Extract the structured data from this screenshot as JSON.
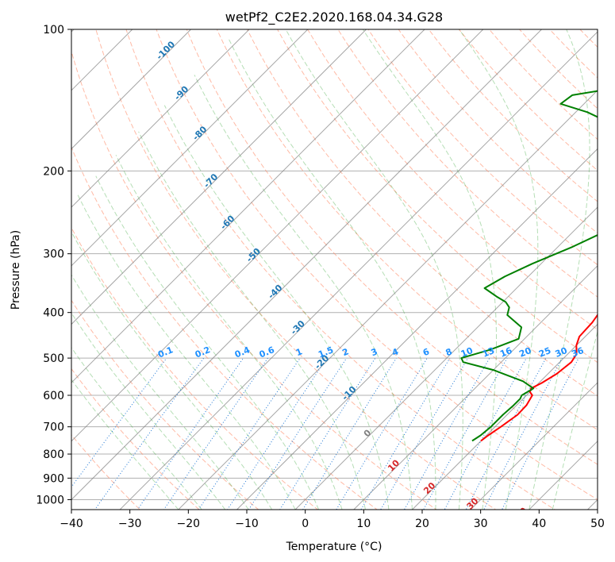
{
  "chart_data": {
    "type": "line",
    "title": "wetPf2_C2E2.2020.168.04.34.G28",
    "xlabel": "Temperature (°C)",
    "ylabel": "Pressure (hPa)",
    "xlim": [
      -40,
      50
    ],
    "ylim": [
      1050,
      100
    ],
    "y_scale": "log",
    "grid": true,
    "x_ticks": [
      -40,
      -30,
      -20,
      -10,
      0,
      10,
      20,
      30,
      40,
      50
    ],
    "x_tick_labels": [
      "−40",
      "−30",
      "−20",
      "−10",
      "0",
      "10",
      "20",
      "30",
      "40",
      "50"
    ],
    "y_ticks": [
      100,
      200,
      300,
      400,
      500,
      600,
      700,
      800,
      900,
      1000
    ],
    "y_tick_labels": [
      "100",
      "200",
      "300",
      "400",
      "500",
      "600",
      "700",
      "800",
      "900",
      "1000"
    ],
    "colors": {
      "temperature": "#ff0000",
      "dewpoint": "#008000",
      "dry_adiabat": "#ff8c69",
      "moist_adiabat": "#2ca02c",
      "mixing_ratio": "#1f77d4",
      "isotherm": "#808080",
      "mr_label": "#1e90ff",
      "iso_label_cold": "#1f77b4",
      "iso_label_zero": "#808080",
      "iso_label_warm": "#d62728"
    },
    "series": [
      {
        "key": "temperature",
        "points": [
          [
            20.0,
            750
          ],
          [
            20.3,
            730
          ],
          [
            21.0,
            700
          ],
          [
            21.8,
            660
          ],
          [
            21.7,
            630
          ],
          [
            21.0,
            600
          ],
          [
            20.0,
            590
          ],
          [
            19.6,
            580
          ],
          [
            20.5,
            565
          ],
          [
            21.5,
            540
          ],
          [
            22.0,
            510
          ],
          [
            21.5,
            490
          ],
          [
            20.0,
            470
          ],
          [
            19.0,
            450
          ],
          [
            18.8,
            420
          ],
          [
            18.3,
            400
          ],
          [
            17.0,
            370
          ],
          [
            15.3,
            340
          ],
          [
            12.5,
            300
          ],
          [
            9.0,
            260
          ],
          [
            6.5,
            230
          ],
          [
            4.5,
            210
          ],
          [
            2.0,
            185
          ],
          [
            2.5,
            170
          ],
          [
            4.5,
            160
          ],
          [
            6.8,
            148
          ],
          [
            7.5,
            140
          ],
          [
            7.2,
            130
          ],
          [
            5.5,
            115
          ],
          [
            4.0,
            106
          ],
          [
            3.0,
            100
          ]
        ]
      },
      {
        "key": "dewpoint",
        "points": [
          [
            18.5,
            750
          ],
          [
            19.0,
            730
          ],
          [
            19.3,
            700
          ],
          [
            19.3,
            660
          ],
          [
            19.5,
            630
          ],
          [
            19.5,
            610
          ],
          [
            19.2,
            600
          ],
          [
            20.0,
            580
          ],
          [
            17.0,
            560
          ],
          [
            10.0,
            530
          ],
          [
            3.5,
            510
          ],
          [
            2.5,
            500
          ],
          [
            6.0,
            480
          ],
          [
            9.0,
            455
          ],
          [
            7.5,
            430
          ],
          [
            3.0,
            405
          ],
          [
            2.0,
            390
          ],
          [
            0.5,
            380
          ],
          [
            -2.0,
            370
          ],
          [
            -5.5,
            355
          ],
          [
            -4.0,
            335
          ],
          [
            -1.5,
            315
          ],
          [
            2.5,
            290
          ],
          [
            6.0,
            265
          ],
          [
            6.5,
            250
          ],
          [
            3.5,
            225
          ],
          [
            1.5,
            205
          ],
          [
            0.0,
            192
          ],
          [
            -3.5,
            178
          ],
          [
            -9.0,
            163
          ],
          [
            -18.0,
            150
          ],
          [
            -24.0,
            144
          ],
          [
            -23.5,
            138
          ],
          [
            -17.0,
            133
          ],
          [
            -9.0,
            124
          ],
          [
            -5.5,
            117
          ],
          [
            -4.0,
            110
          ],
          [
            -1.5,
            104
          ],
          [
            1.5,
            100
          ]
        ]
      }
    ],
    "mixing_ratio_labels": [
      "0.1",
      "0.2",
      "0.4",
      "0.6",
      "1",
      "1.5",
      "2",
      "3",
      "4",
      "6",
      "8",
      "10",
      "13",
      "16",
      "20",
      "25",
      "30",
      "36"
    ],
    "mixing_ratio_values": [
      0.1,
      0.2,
      0.4,
      0.6,
      1,
      1.5,
      2,
      3,
      4,
      6,
      8,
      10,
      13,
      16,
      20,
      25,
      30,
      36
    ],
    "isotherm_labels": [
      "-100",
      "-90",
      "-80",
      "-70",
      "-60",
      "-50",
      "-40",
      "-30",
      "-20",
      "-10",
      "0",
      "10",
      "20",
      "30",
      "40"
    ],
    "isotherm_values": [
      -100,
      -90,
      -80,
      -70,
      -60,
      -50,
      -40,
      -30,
      -20,
      -10,
      0,
      10,
      20,
      30,
      40
    ]
  }
}
